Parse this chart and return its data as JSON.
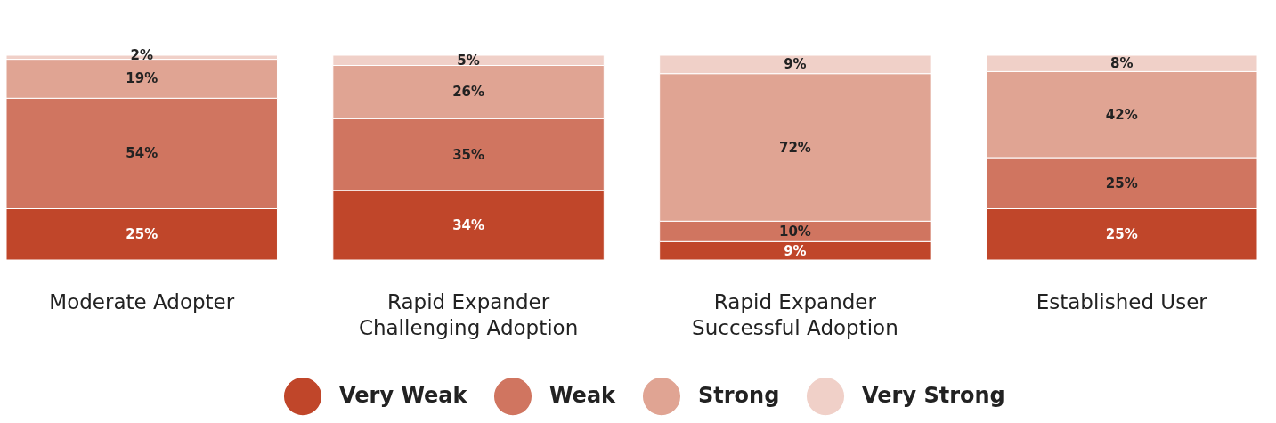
{
  "chart_data": {
    "type": "bar",
    "stacked": true,
    "legend": "bottom",
    "categories": [
      "Moderate Adopter",
      "Rapid Expander Challenging Adoption",
      "Rapid Expander Successful Adoption",
      "Established User"
    ],
    "series": [
      {
        "name": "Very Weak",
        "color": "#c0462a",
        "values": [
          25,
          34,
          9,
          25
        ],
        "value_labels": [
          "25%",
          "34%",
          "9%",
          "25%"
        ]
      },
      {
        "name": "Weak",
        "color": "#d07560",
        "values": [
          54,
          35,
          10,
          25
        ],
        "value_labels": [
          "54%",
          "35%",
          "10%",
          "25%"
        ]
      },
      {
        "name": "Strong",
        "color": "#e0a493",
        "values": [
          19,
          26,
          72,
          42
        ],
        "value_labels": [
          "19%",
          "26%",
          "72%",
          "42%"
        ]
      },
      {
        "name": "Very Strong",
        "color": "#f0d0c8",
        "values": [
          2,
          5,
          9,
          8
        ],
        "value_labels": [
          "2%",
          "5%",
          "9%",
          "8%"
        ]
      }
    ]
  }
}
